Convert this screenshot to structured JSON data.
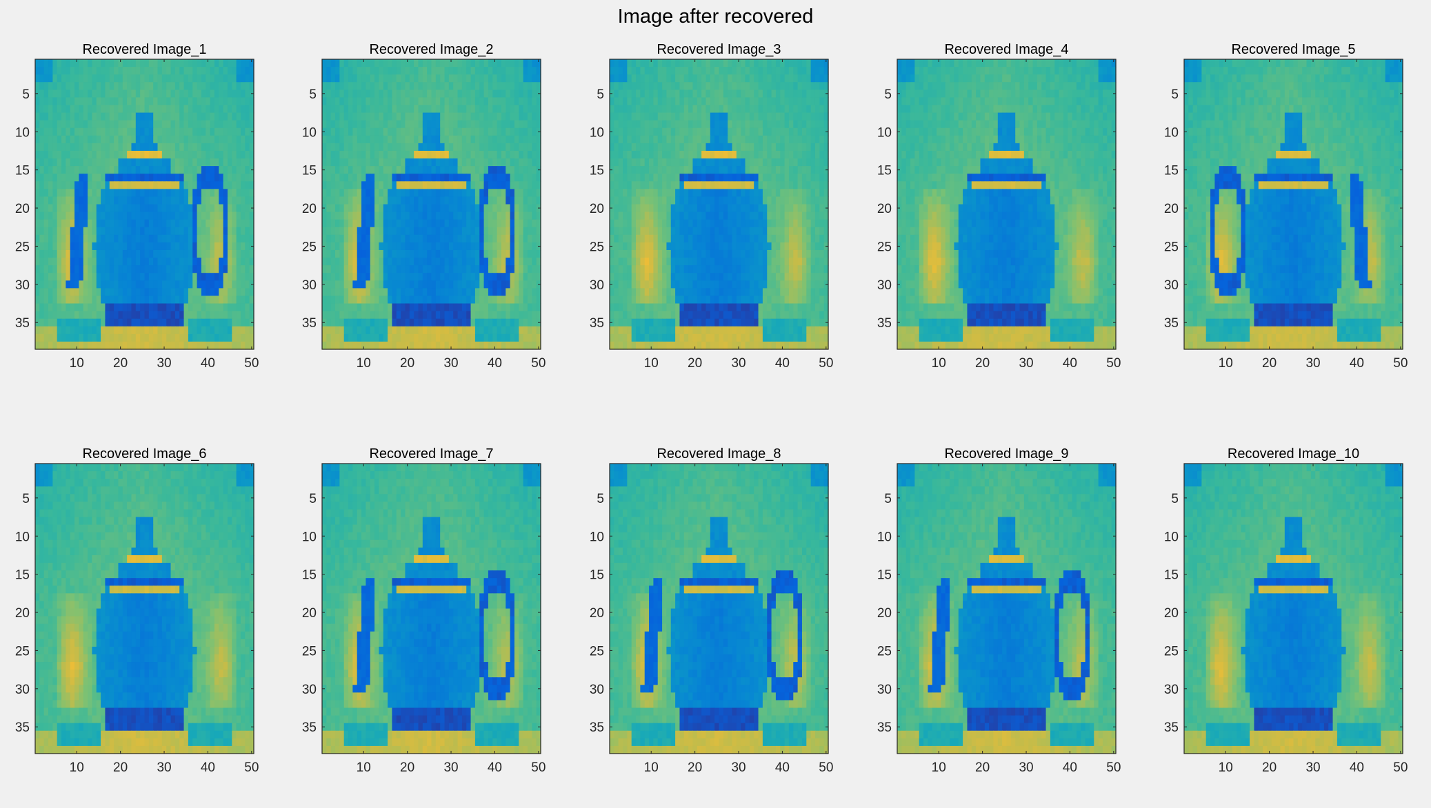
{
  "figure": {
    "title": "Image after recovered"
  },
  "chart_data": [
    {
      "type": "heatmap",
      "title": "Recovered Image_1",
      "handle": "right",
      "spout": "left",
      "xticks": [
        10,
        20,
        30,
        40,
        50
      ],
      "yticks": [
        5,
        10,
        15,
        20,
        25,
        30,
        35
      ],
      "xlim": [
        0.5,
        50.5
      ],
      "ylim": [
        38.5,
        0.5
      ],
      "size": [
        38,
        50
      ],
      "colormap": "parula"
    },
    {
      "type": "heatmap",
      "title": "Recovered Image_2",
      "handle": "right",
      "spout": "left",
      "xticks": [
        10,
        20,
        30,
        40,
        50
      ],
      "yticks": [
        5,
        10,
        15,
        20,
        25,
        30,
        35
      ],
      "xlim": [
        0.5,
        50.5
      ],
      "ylim": [
        38.5,
        0.5
      ],
      "size": [
        38,
        50
      ],
      "colormap": "parula"
    },
    {
      "type": "heatmap",
      "title": "Recovered Image_3",
      "handle": "none",
      "spout": "none",
      "xticks": [
        10,
        20,
        30,
        40,
        50
      ],
      "yticks": [
        5,
        10,
        15,
        20,
        25,
        30,
        35
      ],
      "xlim": [
        0.5,
        50.5
      ],
      "ylim": [
        38.5,
        0.5
      ],
      "size": [
        38,
        50
      ],
      "colormap": "parula"
    },
    {
      "type": "heatmap",
      "title": "Recovered Image_4",
      "handle": "none",
      "spout": "none",
      "xticks": [
        10,
        20,
        30,
        40,
        50
      ],
      "yticks": [
        5,
        10,
        15,
        20,
        25,
        30,
        35
      ],
      "xlim": [
        0.5,
        50.5
      ],
      "ylim": [
        38.5,
        0.5
      ],
      "size": [
        38,
        50
      ],
      "colormap": "parula"
    },
    {
      "type": "heatmap",
      "title": "Recovered Image_5",
      "handle": "left",
      "spout": "right",
      "xticks": [
        10,
        20,
        30,
        40,
        50
      ],
      "yticks": [
        5,
        10,
        15,
        20,
        25,
        30,
        35
      ],
      "xlim": [
        0.5,
        50.5
      ],
      "ylim": [
        38.5,
        0.5
      ],
      "size": [
        38,
        50
      ],
      "colormap": "parula"
    },
    {
      "type": "heatmap",
      "title": "Recovered Image_6",
      "handle": "none",
      "spout": "none",
      "xticks": [
        10,
        20,
        30,
        40,
        50
      ],
      "yticks": [
        5,
        10,
        15,
        20,
        25,
        30,
        35
      ],
      "xlim": [
        0.5,
        50.5
      ],
      "ylim": [
        38.5,
        0.5
      ],
      "size": [
        38,
        50
      ],
      "colormap": "parula"
    },
    {
      "type": "heatmap",
      "title": "Recovered Image_7",
      "handle": "right",
      "spout": "left",
      "xticks": [
        10,
        20,
        30,
        40,
        50
      ],
      "yticks": [
        5,
        10,
        15,
        20,
        25,
        30,
        35
      ],
      "xlim": [
        0.5,
        50.5
      ],
      "ylim": [
        38.5,
        0.5
      ],
      "size": [
        38,
        50
      ],
      "colormap": "parula"
    },
    {
      "type": "heatmap",
      "title": "Recovered Image_8",
      "handle": "right",
      "spout": "left",
      "xticks": [
        10,
        20,
        30,
        40,
        50
      ],
      "yticks": [
        5,
        10,
        15,
        20,
        25,
        30,
        35
      ],
      "xlim": [
        0.5,
        50.5
      ],
      "ylim": [
        38.5,
        0.5
      ],
      "size": [
        38,
        50
      ],
      "colormap": "parula"
    },
    {
      "type": "heatmap",
      "title": "Recovered Image_9",
      "handle": "right",
      "spout": "left",
      "xticks": [
        10,
        20,
        30,
        40,
        50
      ],
      "yticks": [
        5,
        10,
        15,
        20,
        25,
        30,
        35
      ],
      "xlim": [
        0.5,
        50.5
      ],
      "ylim": [
        38.5,
        0.5
      ],
      "size": [
        38,
        50
      ],
      "colormap": "parula"
    },
    {
      "type": "heatmap",
      "title": "Recovered Image_10",
      "handle": "none",
      "spout": "none",
      "xticks": [
        10,
        20,
        30,
        40,
        50
      ],
      "yticks": [
        5,
        10,
        15,
        20,
        25,
        30,
        35
      ],
      "xlim": [
        0.5,
        50.5
      ],
      "ylim": [
        38.5,
        0.5
      ],
      "size": [
        38,
        50
      ],
      "colormap": "parula"
    }
  ]
}
